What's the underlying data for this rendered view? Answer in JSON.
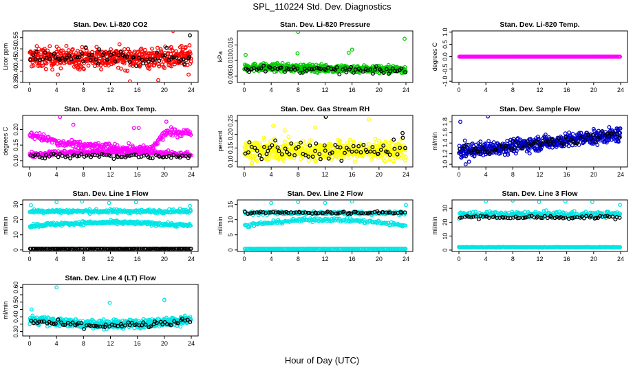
{
  "figure": {
    "title": "SPL_110224  Std. Dev. Diagnostics",
    "xlabel": "Hour of Day (UTC)"
  },
  "chart_data": [
    {
      "type": "scatter",
      "title": "Stan. Dev. Li-820 CO2",
      "ylabel": "Licor ppm",
      "xlim": [
        0,
        24
      ],
      "ylim": [
        0.35,
        0.58
      ],
      "xticks": [
        0,
        4,
        8,
        12,
        16,
        20,
        24
      ],
      "yticks": [
        0.35,
        0.4,
        0.45,
        0.5,
        0.55
      ],
      "ytick_labels": [
        "0.35",
        "0.40",
        "0.45",
        "0.50",
        "0.55"
      ],
      "series": [
        {
          "color": "#ff0000",
          "pattern": "dense",
          "bands": [
            {
              "base": 0.46,
              "amp": 0.0,
              "spread": 0.045
            }
          ],
          "x_range": [
            0,
            24
          ],
          "extremes": [
            [
              14.9,
              0.355
            ],
            [
              19.1,
              0.36
            ],
            [
              21.3,
              0.58
            ],
            [
              4.2,
              0.385
            ],
            [
              23.6,
              0.385
            ]
          ]
        },
        {
          "color": "#000000",
          "pattern": "sparse",
          "bands": [
            {
              "base": 0.46,
              "amp": 0.0,
              "spread": 0.035
            }
          ],
          "x_range": [
            0,
            24
          ],
          "extremes": [
            [
              23.8,
              0.56
            ]
          ]
        }
      ]
    },
    {
      "type": "scatter",
      "title": "Stan. Dev. Li-820 Pressure",
      "ylabel": "kPa",
      "xlim": [
        0,
        24
      ],
      "ylim": [
        0.003,
        0.0195
      ],
      "xticks": [
        0,
        4,
        8,
        12,
        16,
        20,
        24
      ],
      "yticks": [
        0.005,
        0.01,
        0.015
      ],
      "ytick_labels": [
        "0.005",
        "0.010",
        "0.015"
      ],
      "series": [
        {
          "color": "#00cc00",
          "pattern": "dense",
          "bands": [
            {
              "base": 0.0075,
              "amp": -0.0008,
              "spread": 0.0012
            }
          ],
          "x_range": [
            0,
            24
          ],
          "extremes": [
            [
              8.0,
              0.0192
            ],
            [
              23.8,
              0.017
            ],
            [
              0.2,
              0.0118
            ],
            [
              7.9,
              0.0123
            ],
            [
              16.0,
              0.0135
            ],
            [
              15.5,
              0.0125
            ]
          ]
        },
        {
          "color": "#000000",
          "pattern": "sparse",
          "bands": [
            {
              "base": 0.007,
              "amp": -0.0008,
              "spread": 0.001
            }
          ],
          "x_range": [
            0,
            24
          ],
          "extremes": []
        }
      ]
    },
    {
      "type": "scatter",
      "title": "Stan. Dev. Li-820 Temp.",
      "ylabel": "degrees C",
      "xlim": [
        0,
        24
      ],
      "ylim": [
        -1.05,
        1.05
      ],
      "xticks": [
        0,
        4,
        8,
        12,
        16,
        20,
        24
      ],
      "yticks": [
        -1.0,
        -0.5,
        0.0,
        0.5,
        1.0
      ],
      "ytick_labels": [
        "-1.0",
        "-0.5",
        "0.0",
        "0.5",
        "1.0"
      ],
      "series": [
        {
          "color": "#ff00ff",
          "pattern": "flat",
          "bands": [
            {
              "base": 0.0,
              "amp": 0.0,
              "spread": 0.0
            }
          ],
          "x_range": [
            0,
            24
          ],
          "extremes": []
        }
      ]
    },
    {
      "type": "scatter",
      "title": "Stan. Dev. Amb. Box Temp.",
      "ylabel": "degrees C",
      "xlim": [
        0,
        24
      ],
      "ylim": [
        0.08,
        0.245
      ],
      "xticks": [
        0,
        4,
        8,
        12,
        16,
        20,
        24
      ],
      "yticks": [
        0.1,
        0.15,
        0.2
      ],
      "ytick_labels": [
        "0.10",
        "0.15",
        "0.20"
      ],
      "series": [
        {
          "color": "#ff00ff",
          "pattern": "dense",
          "bands": [
            {
              "base": 0.165,
              "amp": 0.0,
              "spread": 0.012,
              "curve": "box-upper"
            },
            {
              "base": 0.12,
              "amp": 0.0,
              "spread": 0.008,
              "curve": "box-lower"
            }
          ],
          "x_range": [
            0,
            24
          ],
          "extremes": [
            [
              4.5,
              0.24
            ],
            [
              6.5,
              0.215
            ],
            [
              15.5,
              0.205
            ],
            [
              16.2,
              0.205
            ],
            [
              20.3,
              0.225
            ]
          ]
        },
        {
          "color": "#000000",
          "pattern": "sparse",
          "bands": [
            {
              "base": 0.115,
              "amp": 0.0,
              "spread": 0.008
            }
          ],
          "x_range": [
            0,
            24
          ],
          "extremes": []
        }
      ]
    },
    {
      "type": "scatter",
      "title": "Stan. Dev. Gas Stream RH",
      "ylabel": "percent",
      "xlim": [
        0,
        24
      ],
      "ylim": [
        0.08,
        0.27
      ],
      "xticks": [
        0,
        4,
        8,
        12,
        16,
        20,
        24
      ],
      "yticks": [
        0.1,
        0.15,
        0.2,
        0.25
      ],
      "ytick_labels": [
        "0.10",
        "0.15",
        "0.20",
        "0.25"
      ],
      "series": [
        {
          "color": "#ffff00",
          "pattern": "dense",
          "bands": [
            {
              "base": 0.14,
              "amp": 0.0,
              "spread": 0.035
            }
          ],
          "x_range": [
            0,
            24
          ],
          "extremes": [
            [
              12.1,
              0.265
            ],
            [
              4.3,
              0.232
            ],
            [
              18.5,
              0.255
            ],
            [
              6.0,
              0.215
            ],
            [
              10.5,
              0.225
            ]
          ]
        },
        {
          "color": "#000000",
          "pattern": "sparse",
          "bands": [
            {
              "base": 0.14,
              "amp": 0.0,
              "spread": 0.035
            }
          ],
          "x_range": [
            0,
            24
          ],
          "extremes": [
            [
              12.1,
              0.265
            ],
            [
              23.5,
              0.205
            ]
          ]
        }
      ]
    },
    {
      "type": "scatter",
      "title": "Stan. Dev. Sample Flow",
      "ylabel": "ml/min",
      "xlim": [
        0,
        24
      ],
      "ylim": [
        0.95,
        1.92
      ],
      "xticks": [
        0,
        4,
        8,
        12,
        16,
        20,
        24
      ],
      "yticks": [
        1.0,
        1.2,
        1.4,
        1.6,
        1.8
      ],
      "ytick_labels": [
        "1.0",
        "1.2",
        "1.4",
        "1.6",
        "1.8"
      ],
      "series": [
        {
          "color": "#0000cc",
          "pattern": "dense",
          "bands": [
            {
              "base": 1.4,
              "amp": 0.2,
              "spread": 0.13,
              "curve": "rising"
            }
          ],
          "x_range": [
            0,
            24
          ],
          "extremes": [
            [
              4.3,
              1.9
            ],
            [
              0.2,
              1.8
            ],
            [
              1.0,
              1.0
            ],
            [
              1.5,
              1.05
            ]
          ]
        },
        {
          "color": "#000000",
          "pattern": "sparse",
          "bands": [
            {
              "base": 1.4,
              "amp": 0.2,
              "spread": 0.1,
              "curve": "rising"
            }
          ],
          "x_range": [
            0,
            24
          ],
          "extremes": []
        }
      ]
    },
    {
      "type": "scatter",
      "title": "Stan. Dev. Line 1 Flow",
      "ylabel": "ml/min",
      "xlim": [
        0,
        24
      ],
      "ylim": [
        -1,
        33
      ],
      "xticks": [
        0,
        4,
        8,
        12,
        16,
        20,
        24
      ],
      "yticks": [
        0,
        10,
        20,
        30
      ],
      "ytick_labels": [
        "0",
        "10",
        "20",
        "30"
      ],
      "series": [
        {
          "color": "#00e5e5",
          "pattern": "dense",
          "bands": [
            {
              "base": 25.5,
              "amp": 0.0,
              "spread": 1.2
            },
            {
              "base": 16.0,
              "amp": 2.0,
              "spread": 1.2,
              "curve": "hump"
            }
          ],
          "x_range": [
            0,
            24
          ],
          "extremes": [
            [
              0.2,
              29.5
            ],
            [
              4.0,
              31.5
            ],
            [
              7.8,
              32.0
            ],
            [
              11.8,
              31.0
            ],
            [
              15.8,
              31.5
            ],
            [
              23.8,
              29.0
            ]
          ]
        },
        {
          "color": "#000000",
          "pattern": "line",
          "bands": [
            {
              "base": 0.8,
              "amp": 0.0,
              "spread": 0.1
            }
          ],
          "x_range": [
            0,
            24
          ],
          "extremes": []
        }
      ]
    },
    {
      "type": "scatter",
      "title": "Stan. Dev. Line 2 Flow",
      "ylabel": "ml/min",
      "xlim": [
        0,
        24
      ],
      "ylim": [
        -0.5,
        16.5
      ],
      "xticks": [
        0,
        4,
        8,
        12,
        16,
        20,
        24
      ],
      "yticks": [
        0,
        5,
        10,
        15
      ],
      "ytick_labels": [
        "0",
        "5",
        "10",
        "15"
      ],
      "series": [
        {
          "color": "#00e5e5",
          "pattern": "dense",
          "bands": [
            {
              "base": 12.2,
              "amp": 0.0,
              "spread": 0.6
            },
            {
              "base": 8.0,
              "amp": 2.0,
              "spread": 0.6,
              "curve": "hump"
            },
            {
              "base": 0.4,
              "amp": 0.0,
              "spread": 0.05
            }
          ],
          "x_range": [
            0,
            24
          ],
          "extremes": [
            [
              4.0,
              15.5
            ],
            [
              8.0,
              15.8
            ],
            [
              12.0,
              15.5
            ],
            [
              16.0,
              16.0
            ],
            [
              24.0,
              14.8
            ]
          ]
        },
        {
          "color": "#000000",
          "pattern": "sparse",
          "bands": [
            {
              "base": 12.3,
              "amp": 0.0,
              "spread": 0.4
            }
          ],
          "x_range": [
            0,
            24
          ],
          "extremes": []
        }
      ]
    },
    {
      "type": "scatter",
      "title": "Stan. Dev. Line 3 Flow",
      "ylabel": "ml/min",
      "xlim": [
        0,
        24
      ],
      "ylim": [
        -1,
        36
      ],
      "xticks": [
        0,
        4,
        8,
        12,
        16,
        20,
        24
      ],
      "yticks": [
        0,
        10,
        20,
        30
      ],
      "ytick_labels": [
        "0",
        "10",
        "20",
        "30"
      ],
      "series": [
        {
          "color": "#00e5e5",
          "pattern": "dense",
          "bands": [
            {
              "base": 25.5,
              "amp": 0.0,
              "spread": 2.2
            },
            {
              "base": 2.0,
              "amp": 0.0,
              "spread": 0.25
            }
          ],
          "x_range": [
            0,
            24
          ],
          "extremes": [
            [
              4.0,
              35.0
            ],
            [
              8.0,
              35.5
            ],
            [
              11.9,
              34.5
            ],
            [
              15.8,
              35.0
            ],
            [
              19.8,
              34.5
            ],
            [
              23.9,
              32.5
            ]
          ]
        },
        {
          "color": "#000000",
          "pattern": "sparse",
          "bands": [
            {
              "base": 23.5,
              "amp": 0.0,
              "spread": 1.2
            }
          ],
          "x_range": [
            0,
            24
          ],
          "extremes": []
        }
      ]
    },
    {
      "type": "scatter",
      "title": "Stan. Dev. Line 4 (LT) Flow",
      "ylabel": "ml/min",
      "xlim": [
        0,
        24
      ],
      "ylim": [
        0.27,
        0.62
      ],
      "xticks": [
        0,
        4,
        8,
        12,
        16,
        20,
        24
      ],
      "yticks": [
        0.3,
        0.35,
        0.4,
        0.45,
        0.5,
        0.55,
        0.6
      ],
      "ytick_labels": [
        "0.30",
        "",
        "0.40",
        "",
        "0.50",
        "",
        "0.60"
      ],
      "series": [
        {
          "color": "#00e5e5",
          "pattern": "dense",
          "bands": [
            {
              "base": 0.38,
              "amp": -0.03,
              "spread": 0.028,
              "curve": "dip"
            }
          ],
          "x_range": [
            0,
            24
          ],
          "extremes": [
            [
              4.0,
              0.6
            ],
            [
              11.9,
              0.495
            ],
            [
              20.0,
              0.515
            ],
            [
              0.3,
              0.45
            ]
          ]
        },
        {
          "color": "#000000",
          "pattern": "sparse",
          "bands": [
            {
              "base": 0.37,
              "amp": -0.03,
              "spread": 0.02,
              "curve": "dip"
            }
          ],
          "x_range": [
            0,
            24
          ],
          "extremes": []
        }
      ]
    }
  ]
}
